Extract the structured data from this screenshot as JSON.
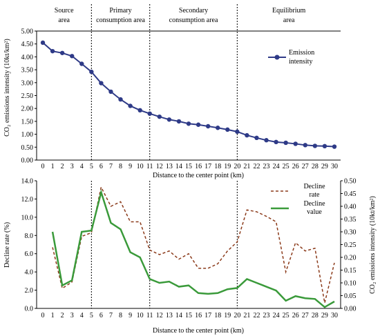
{
  "chart_data": [
    {
      "type": "line",
      "xlabel": "Distance to the center point (km)",
      "ylabel": "CO₂ emissions intensity (10kt/km²)",
      "ylim": [
        0.0,
        5.0
      ],
      "yticks": [
        "0.00",
        "0.50",
        "1.00",
        "1.50",
        "2.00",
        "2.50",
        "3.00",
        "3.50",
        "4.00",
        "4.50",
        "5.00"
      ],
      "x": [
        0,
        1,
        2,
        3,
        4,
        5,
        6,
        7,
        8,
        9,
        10,
        11,
        12,
        13,
        14,
        15,
        16,
        17,
        18,
        19,
        20,
        21,
        22,
        23,
        24,
        25,
        26,
        27,
        28,
        29,
        30
      ],
      "series": [
        {
          "name": "Emission intensity",
          "color": "#2e3a87",
          "marker": "circle",
          "values": [
            4.55,
            4.22,
            4.15,
            4.03,
            3.73,
            3.42,
            2.98,
            2.65,
            2.35,
            2.1,
            1.93,
            1.8,
            1.68,
            1.57,
            1.5,
            1.41,
            1.37,
            1.31,
            1.25,
            1.18,
            1.1,
            0.96,
            0.86,
            0.77,
            0.7,
            0.67,
            0.63,
            0.58,
            0.55,
            0.54,
            0.52
          ]
        }
      ],
      "legend": "right",
      "grid": false,
      "areas": [
        "Source area",
        "Primary consumption area",
        "Secondary consumption area",
        "Equilibrium area"
      ],
      "area_dividers": [
        5,
        11,
        20
      ]
    },
    {
      "type": "line",
      "xlabel": "Distance to the center point (km)",
      "ylabel": "Decline rate (%)",
      "ylabel_right": "CO₂ emissions intensity (10kt/km²)",
      "ylim": [
        0.0,
        14.0
      ],
      "ylim_right": [
        0.0,
        0.5
      ],
      "yticks": [
        "0.0",
        "2.0",
        "4.0",
        "6.0",
        "8.0",
        "10.0",
        "12.0",
        "14.0"
      ],
      "yticks_right": [
        "0.00",
        "0.05",
        "0.10",
        "0.15",
        "0.20",
        "0.25",
        "0.30",
        "0.35",
        "0.40",
        "0.45",
        "0.50"
      ],
      "x": [
        0,
        1,
        2,
        3,
        4,
        5,
        6,
        7,
        8,
        9,
        10,
        11,
        12,
        13,
        14,
        15,
        16,
        17,
        18,
        19,
        20,
        21,
        22,
        23,
        24,
        25,
        26,
        27,
        28,
        29,
        30
      ],
      "series": [
        {
          "name": "Decline rate",
          "axis": "left",
          "color": "#8b3a1a",
          "style": "dashed",
          "values": [
            null,
            6.7,
            2.2,
            2.9,
            7.9,
            8.3,
            13.3,
            11.2,
            11.7,
            9.5,
            9.5,
            6.4,
            5.9,
            6.3,
            5.4,
            6.0,
            4.4,
            4.4,
            4.9,
            6.3,
            7.3,
            10.8,
            10.6,
            10.1,
            9.5,
            4.0,
            7.2,
            6.3,
            6.6,
            0.6,
            5.0
          ]
        },
        {
          "name": "Decline value",
          "axis": "right",
          "color": "#3a9a3a",
          "style": "solid",
          "values": [
            null,
            0.3,
            0.09,
            0.11,
            0.3,
            0.305,
            0.455,
            0.335,
            0.31,
            0.22,
            0.2,
            0.115,
            0.1,
            0.105,
            0.085,
            0.09,
            0.06,
            0.057,
            0.06,
            0.075,
            0.08,
            0.115,
            0.1,
            0.085,
            0.07,
            0.03,
            0.048,
            0.04,
            0.037,
            0.005,
            0.027
          ]
        }
      ],
      "legend": "top-right",
      "grid": false,
      "area_dividers": [
        5,
        11,
        20
      ]
    }
  ]
}
